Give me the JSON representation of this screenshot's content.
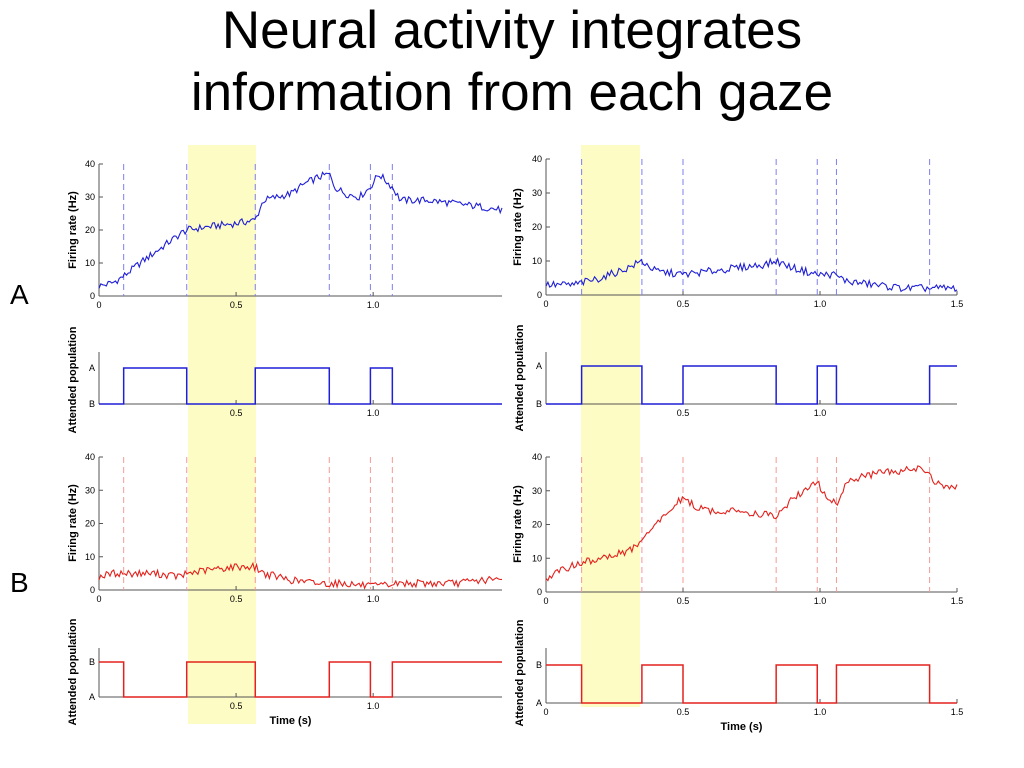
{
  "title": {
    "line1": "Neural activity integrates",
    "line2": "information from each gaze"
  },
  "panel_labels": [
    "A",
    "B"
  ],
  "colors": {
    "blue": "#1f1fd6",
    "red": "#e3221d",
    "highlight": "#fdfcc4",
    "dash_blue": "#7f7ff0",
    "dash_red": "#f59a96"
  },
  "chart_data": [
    {
      "id": "A-left-firing",
      "type": "line",
      "color": "#1f1fd6",
      "ylabel": "Firing rate (Hz)",
      "xlim": [
        0,
        1.47
      ],
      "ylim": [
        0,
        40
      ],
      "xticks": [
        0,
        0.5,
        1.0
      ],
      "xtick_labels": [
        "0",
        "0.5",
        "1.0"
      ],
      "yticks": [
        0,
        10,
        20,
        30,
        40
      ],
      "ytick_labels": [
        "0",
        "10",
        "20",
        "30",
        "40"
      ],
      "gaze_shifts": [
        0.09,
        0.32,
        0.57,
        0.84,
        0.99,
        1.07
      ],
      "highlight": [
        0.32,
        0.57
      ],
      "x": [
        0,
        0.05,
        0.09,
        0.15,
        0.2,
        0.25,
        0.3,
        0.32,
        0.4,
        0.5,
        0.57,
        0.6,
        0.65,
        0.7,
        0.75,
        0.8,
        0.84,
        0.86,
        0.9,
        0.95,
        0.99,
        1.02,
        1.07,
        1.1,
        1.2,
        1.3,
        1.4,
        1.47
      ],
      "y": [
        3,
        4,
        6,
        10,
        13,
        16,
        19,
        20,
        21,
        22,
        23,
        29,
        30,
        31,
        34,
        36,
        37,
        33,
        31,
        30,
        33,
        37,
        33,
        29,
        29,
        28,
        27,
        26
      ]
    },
    {
      "id": "A-right-firing",
      "type": "line",
      "color": "#1f1fd6",
      "ylabel": "Firing rate (Hz)",
      "xlim": [
        0,
        1.5
      ],
      "ylim": [
        0,
        40
      ],
      "xticks": [
        0,
        0.5,
        1.0,
        1.5
      ],
      "xtick_labels": [
        "0",
        "0.5",
        "1.0",
        "1.5"
      ],
      "yticks": [
        0,
        10,
        20,
        30,
        40
      ],
      "ytick_labels": [
        "0",
        "10",
        "20",
        "30",
        "40"
      ],
      "gaze_shifts": [
        0.13,
        0.35,
        0.5,
        0.84,
        0.99,
        1.06,
        1.4
      ],
      "highlight": [
        0.13,
        0.34
      ],
      "x": [
        0,
        0.1,
        0.2,
        0.3,
        0.35,
        0.4,
        0.5,
        0.6,
        0.7,
        0.8,
        0.84,
        0.9,
        0.99,
        1.05,
        1.1,
        1.2,
        1.3,
        1.4,
        1.5
      ],
      "y": [
        3,
        3,
        5,
        8,
        10,
        7,
        6,
        7,
        8,
        9,
        10,
        8,
        6,
        6,
        4,
        3,
        2,
        2,
        2
      ]
    },
    {
      "id": "A-left-attended",
      "type": "step",
      "color": "#1f1fd6",
      "ylabel": "Attended population",
      "xlim": [
        0,
        1.47
      ],
      "level_labels": [
        "A",
        "B"
      ],
      "xticks": [
        0.5,
        1.0
      ],
      "xtick_labels": [
        "0.5",
        "1.0"
      ],
      "highlight": [
        0.32,
        0.57
      ],
      "segments": [
        [
          0,
          0.09,
          "B"
        ],
        [
          0.09,
          0.32,
          "A"
        ],
        [
          0.32,
          0.57,
          "B"
        ],
        [
          0.57,
          0.84,
          "A"
        ],
        [
          0.84,
          0.99,
          "B"
        ],
        [
          0.99,
          1.07,
          "A"
        ],
        [
          1.07,
          1.47,
          "B"
        ]
      ]
    },
    {
      "id": "A-right-attended",
      "type": "step",
      "color": "#1f1fd6",
      "ylabel": "Attended population",
      "xlim": [
        0,
        1.5
      ],
      "level_labels": [
        "A",
        "B"
      ],
      "xticks": [
        0.5,
        1.0
      ],
      "xtick_labels": [
        "0.5",
        "1.0"
      ],
      "highlight": [
        0.13,
        0.34
      ],
      "segments": [
        [
          0,
          0.13,
          "B"
        ],
        [
          0.13,
          0.35,
          "A"
        ],
        [
          0.35,
          0.5,
          "B"
        ],
        [
          0.5,
          0.84,
          "A"
        ],
        [
          0.84,
          0.99,
          "B"
        ],
        [
          0.99,
          1.06,
          "A"
        ],
        [
          1.06,
          1.4,
          "B"
        ],
        [
          1.4,
          1.5,
          "A"
        ]
      ]
    },
    {
      "id": "B-left-firing",
      "type": "line",
      "color": "#e3221d",
      "ylabel": "Firing rate (Hz)",
      "xlim": [
        0,
        1.47
      ],
      "ylim": [
        0,
        40
      ],
      "xticks": [
        0,
        0.5,
        1.0
      ],
      "xtick_labels": [
        "0",
        "0.5",
        "1.0"
      ],
      "yticks": [
        0,
        10,
        20,
        30,
        40
      ],
      "ytick_labels": [
        "0",
        "10",
        "20",
        "30",
        "40"
      ],
      "gaze_shifts": [
        0.09,
        0.32,
        0.57,
        0.84,
        0.99,
        1.07
      ],
      "highlight": [
        0.32,
        0.57
      ],
      "x": [
        0,
        0.05,
        0.1,
        0.2,
        0.3,
        0.32,
        0.4,
        0.5,
        0.57,
        0.6,
        0.7,
        0.8,
        0.9,
        1.0,
        1.1,
        1.2,
        1.3,
        1.4,
        1.47
      ],
      "y": [
        4,
        5,
        5,
        5,
        4,
        5,
        6,
        7,
        7,
        5,
        3,
        2,
        2,
        1,
        2,
        2,
        2,
        3,
        3
      ]
    },
    {
      "id": "B-right-firing",
      "type": "line",
      "color": "#e3221d",
      "ylabel": "Firing rate (Hz)",
      "xlim": [
        0,
        1.5
      ],
      "ylim": [
        0,
        40
      ],
      "xticks": [
        0,
        0.5,
        1.0,
        1.5
      ],
      "xtick_labels": [
        "0",
        "0.5",
        "1.0",
        "1.5"
      ],
      "yticks": [
        0,
        10,
        20,
        30,
        40
      ],
      "ytick_labels": [
        "0",
        "10",
        "20",
        "30",
        "40"
      ],
      "gaze_shifts": [
        0.13,
        0.35,
        0.5,
        0.84,
        0.99,
        1.06,
        1.4
      ],
      "highlight": [
        0.13,
        0.34
      ],
      "x": [
        0,
        0.05,
        0.1,
        0.2,
        0.3,
        0.35,
        0.4,
        0.45,
        0.5,
        0.55,
        0.6,
        0.7,
        0.8,
        0.84,
        0.9,
        0.95,
        0.99,
        1.02,
        1.06,
        1.1,
        1.2,
        1.3,
        1.38,
        1.4,
        1.45,
        1.5
      ],
      "y": [
        4,
        6,
        8,
        10,
        12,
        15,
        20,
        24,
        28,
        25,
        24,
        24,
        23,
        22,
        28,
        30,
        33,
        28,
        26,
        33,
        35,
        36,
        37,
        34,
        31,
        31
      ]
    },
    {
      "id": "B-left-attended",
      "type": "step",
      "color": "#e3221d",
      "ylabel": "Attended population",
      "xlim": [
        0,
        1.47
      ],
      "level_labels": [
        "B",
        "A"
      ],
      "xticks": [
        0.5,
        1.0
      ],
      "xtick_labels": [
        "0.5",
        "1.0"
      ],
      "xlabel": "Time (s)",
      "highlight": [
        0.32,
        0.57
      ],
      "segments": [
        [
          0,
          0.09,
          "B"
        ],
        [
          0.09,
          0.32,
          "A"
        ],
        [
          0.32,
          0.57,
          "B"
        ],
        [
          0.57,
          0.84,
          "A"
        ],
        [
          0.84,
          0.99,
          "B"
        ],
        [
          0.99,
          1.07,
          "A"
        ],
        [
          1.07,
          1.47,
          "B"
        ]
      ]
    },
    {
      "id": "B-right-attended",
      "type": "step",
      "color": "#e3221d",
      "ylabel": "Attended population",
      "xlim": [
        0,
        1.5
      ],
      "level_labels": [
        "B",
        "A"
      ],
      "xticks": [
        0,
        0.5,
        1.0,
        1.5
      ],
      "xtick_labels": [
        "0",
        "0.5",
        "1.0",
        "1.5"
      ],
      "xlabel": "Time (s)",
      "highlight": [
        0.13,
        0.34
      ],
      "segments": [
        [
          0,
          0.13,
          "B"
        ],
        [
          0.13,
          0.35,
          "A"
        ],
        [
          0.35,
          0.5,
          "B"
        ],
        [
          0.5,
          0.84,
          "A"
        ],
        [
          0.84,
          0.99,
          "B"
        ],
        [
          0.99,
          1.06,
          "A"
        ],
        [
          1.06,
          1.4,
          "B"
        ],
        [
          1.4,
          1.5,
          "A"
        ]
      ]
    }
  ]
}
